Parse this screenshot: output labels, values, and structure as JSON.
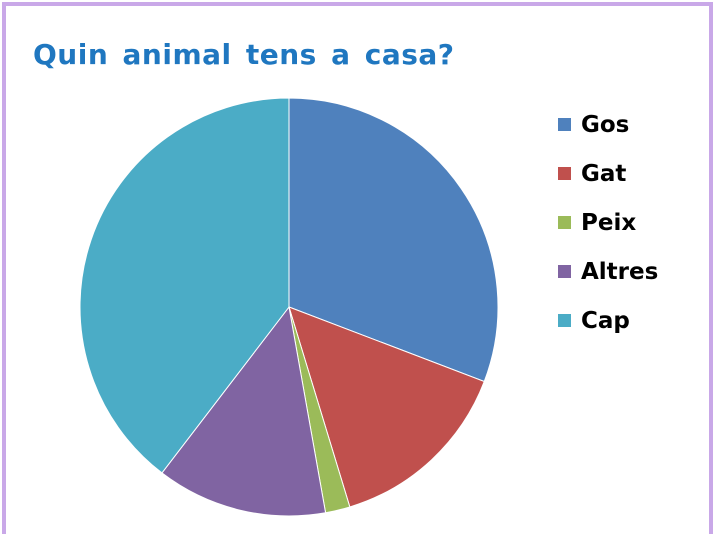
{
  "chart_data": {
    "type": "pie",
    "title": "Quin animal tens a casa?",
    "categories": [
      "Gos",
      "Gat",
      "Peix",
      "Altres",
      "Cap"
    ],
    "values": [
      30.8,
      14.5,
      1.9,
      13.2,
      39.6
    ],
    "unit": "",
    "start_angle_deg": 0,
    "direction": "clockwise",
    "legend_position": "right",
    "colors": [
      "#4f81bd",
      "#c0504d",
      "#9bbb59",
      "#8064a2",
      "#4bacc6"
    ]
  }
}
